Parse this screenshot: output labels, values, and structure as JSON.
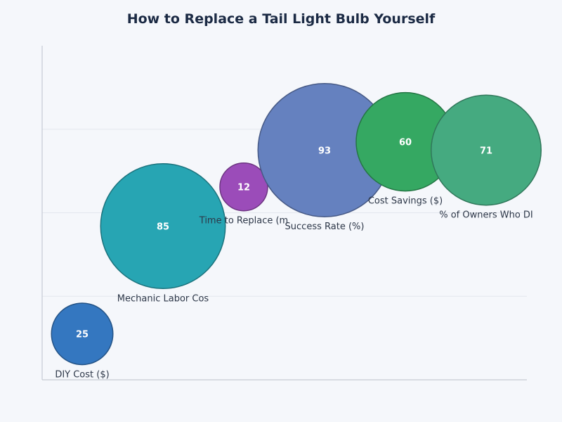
{
  "chart_data": {
    "type": "scatter",
    "title": "How to Replace a Tail Light Bulb Yourself",
    "xlabel": "",
    "ylabel": "",
    "ylim": [
      0,
      4
    ],
    "grid": true,
    "points": [
      {
        "label": "DIY Cost ($)",
        "value": 25,
        "y": 0.55,
        "color": "#3477c0"
      },
      {
        "label": "Mechanic Labor Cos",
        "value": 85,
        "y": 1.84,
        "color": "#27a5b3"
      },
      {
        "label": "Time to Replace (m",
        "value": 12,
        "y": 2.31,
        "color": "#9b4cb9"
      },
      {
        "label": "Success Rate (%)",
        "value": 93,
        "y": 2.75,
        "color": "#6581bf"
      },
      {
        "label": "Cost Savings ($)",
        "value": 60,
        "y": 2.85,
        "color": "#35a862"
      },
      {
        "label": "% of Owners Who DI",
        "value": 71,
        "y": 2.75,
        "color": "#45aa80"
      }
    ]
  }
}
